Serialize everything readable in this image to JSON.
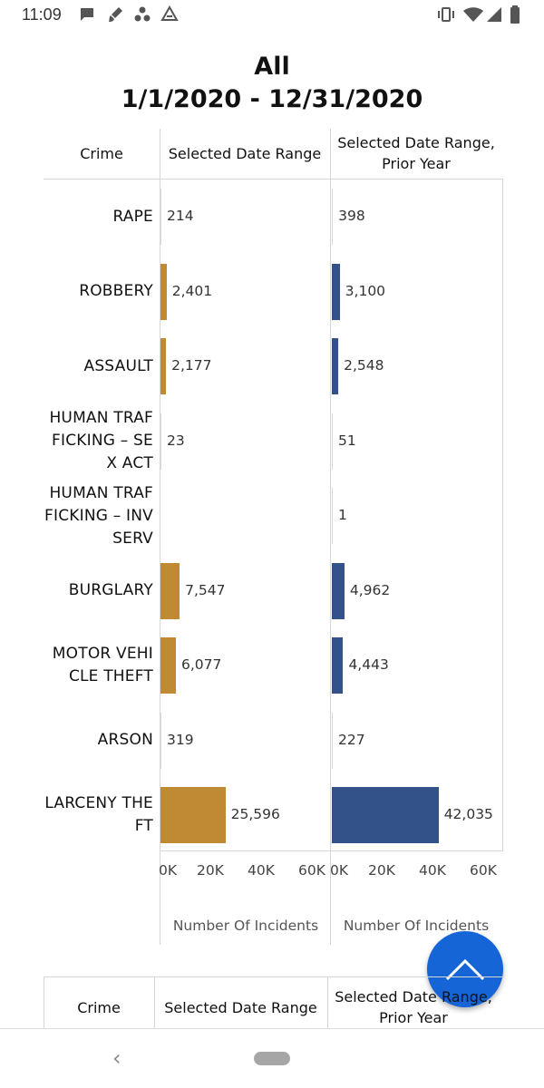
{
  "status_bar": {
    "time": "11:09"
  },
  "titles": {
    "line1": "All",
    "line2": "1/1/2020 - 12/31/2020"
  },
  "headers": {
    "crime": "Crime",
    "current": "Selected Date Range",
    "prior_line1": "Selected Date Range,",
    "prior_line2": "Prior Year"
  },
  "colors": {
    "current": "#c08a34",
    "prior": "#34528a",
    "fab": "#1565d6"
  },
  "chart_data": {
    "type": "bar",
    "orientation": "horizontal",
    "title": "All 1/1/2020 - 12/31/2020",
    "categories": [
      [
        "RAPE"
      ],
      [
        "ROBBERY"
      ],
      [
        "ASSAULT"
      ],
      [
        "HUMAN TRAF",
        "FICKING – SE",
        "X ACT"
      ],
      [
        "HUMAN TRAF",
        "FICKING – INV",
        "SERV"
      ],
      [
        "BURGLARY"
      ],
      [
        "MOTOR VEHI",
        "CLE THEFT"
      ],
      [
        "ARSON"
      ],
      [
        "LARCENY THE",
        "FT"
      ]
    ],
    "series": [
      {
        "name": "Selected Date Range",
        "values": [
          214,
          2401,
          2177,
          23,
          null,
          7547,
          6077,
          319,
          25596
        ],
        "labels": [
          "214",
          "2,401",
          "2,177",
          "23",
          "",
          "7,547",
          "6,077",
          "319",
          "25,596"
        ]
      },
      {
        "name": "Selected Date Range, Prior Year",
        "values": [
          398,
          3100,
          2548,
          51,
          1,
          4962,
          4443,
          227,
          42035
        ],
        "labels": [
          "398",
          "3,100",
          "2,548",
          "51",
          "1",
          "4,962",
          "4,443",
          "227",
          "42,035"
        ]
      }
    ],
    "xlim": [
      0,
      60000
    ],
    "x_ticks": [
      "0K",
      "20K",
      "40K",
      "60K"
    ],
    "xlabel": "Number Of Incidents",
    "ylabel": "Crime"
  },
  "second_table_header": {
    "crime": "Crime",
    "current": "Selected Date Range",
    "prior_line1": "Selected Date Range,",
    "prior_line2": "Prior Year"
  }
}
